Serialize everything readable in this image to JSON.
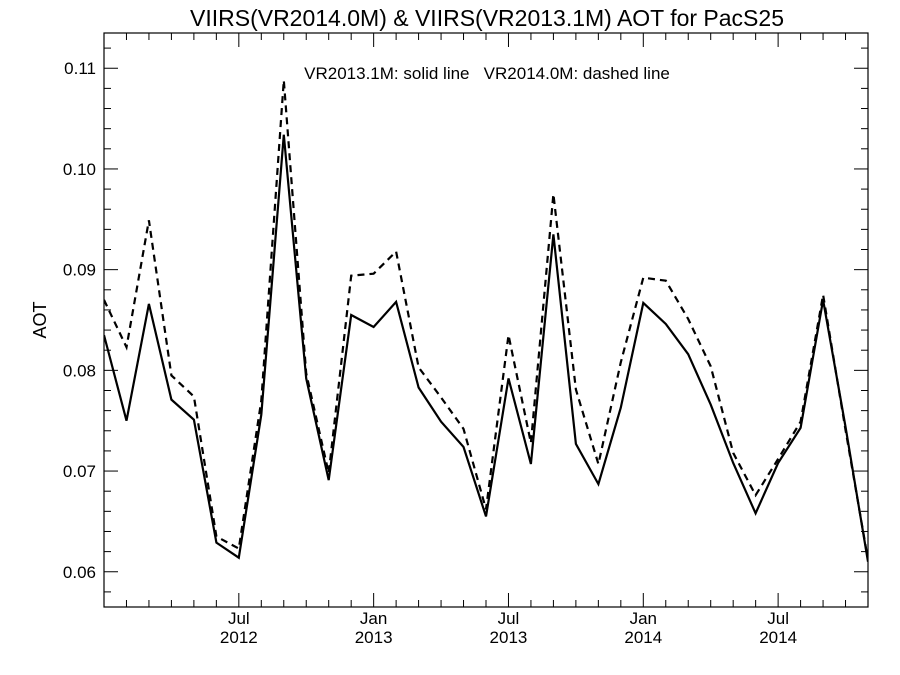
{
  "chart_data": {
    "type": "line",
    "title": "VIIRS(VR2014.0M) & VIIRS(VR2013.1M)  AOT for PacS25",
    "annotation": "VR2013.1M: solid line   VR2014.0M: dashed line",
    "ylabel": "AOT",
    "xlabel": "",
    "xlim": [
      "2012-01",
      "2014-11"
    ],
    "ylim": [
      0.0565,
      0.1135
    ],
    "y_ticks": [
      "0.06",
      "0.07",
      "0.08",
      "0.09",
      "0.10",
      "0.11"
    ],
    "x_ticks": [
      {
        "x": "2012-07",
        "month": "Jul",
        "year": "2012"
      },
      {
        "x": "2013-01",
        "month": "Jan",
        "year": "2013"
      },
      {
        "x": "2013-07",
        "month": "Jul",
        "year": "2013"
      },
      {
        "x": "2014-01",
        "month": "Jan",
        "year": "2014"
      },
      {
        "x": "2014-07",
        "month": "Jul",
        "year": "2014"
      }
    ],
    "x": [
      "2012-01",
      "2012-02",
      "2012-03",
      "2012-04",
      "2012-05",
      "2012-06",
      "2012-07",
      "2012-08",
      "2012-09",
      "2012-10",
      "2012-11",
      "2012-12",
      "2013-01",
      "2013-02",
      "2013-03",
      "2013-04",
      "2013-05",
      "2013-06",
      "2013-07",
      "2013-08",
      "2013-09",
      "2013-10",
      "2013-11",
      "2013-12",
      "2014-01",
      "2014-02",
      "2014-03",
      "2014-04",
      "2014-05",
      "2014-06",
      "2014-07",
      "2014-08",
      "2014-09",
      "2014-10",
      "2014-11"
    ],
    "series": [
      {
        "style": "solid",
        "values": [
          0.0835,
          0.075,
          0.0866,
          0.0771,
          0.0751,
          0.0629,
          0.0614,
          0.0756,
          0.1034,
          0.0792,
          0.0691,
          0.0855,
          0.0843,
          0.0868,
          0.0783,
          0.0749,
          0.0724,
          0.0655,
          0.0792,
          0.0707,
          0.0935,
          0.0727,
          0.0687,
          0.0763,
          0.0867,
          0.0846,
          0.0816,
          0.0766,
          0.0708,
          0.0658,
          0.0708,
          0.0743,
          0.087,
          0.0744,
          0.061
        ]
      },
      {
        "style": "dashed",
        "values": [
          0.087,
          0.0823,
          0.0949,
          0.0795,
          0.0774,
          0.0635,
          0.0623,
          0.077,
          0.1088,
          0.0797,
          0.0698,
          0.0894,
          0.0896,
          0.0918,
          0.0803,
          0.0773,
          0.0742,
          0.0662,
          0.0835,
          0.0728,
          0.0975,
          0.0781,
          0.0707,
          0.0808,
          0.0892,
          0.0889,
          0.0851,
          0.0804,
          0.0718,
          0.0676,
          0.0712,
          0.0749,
          0.0875,
          0.0741,
          0.0612
        ]
      }
    ]
  }
}
